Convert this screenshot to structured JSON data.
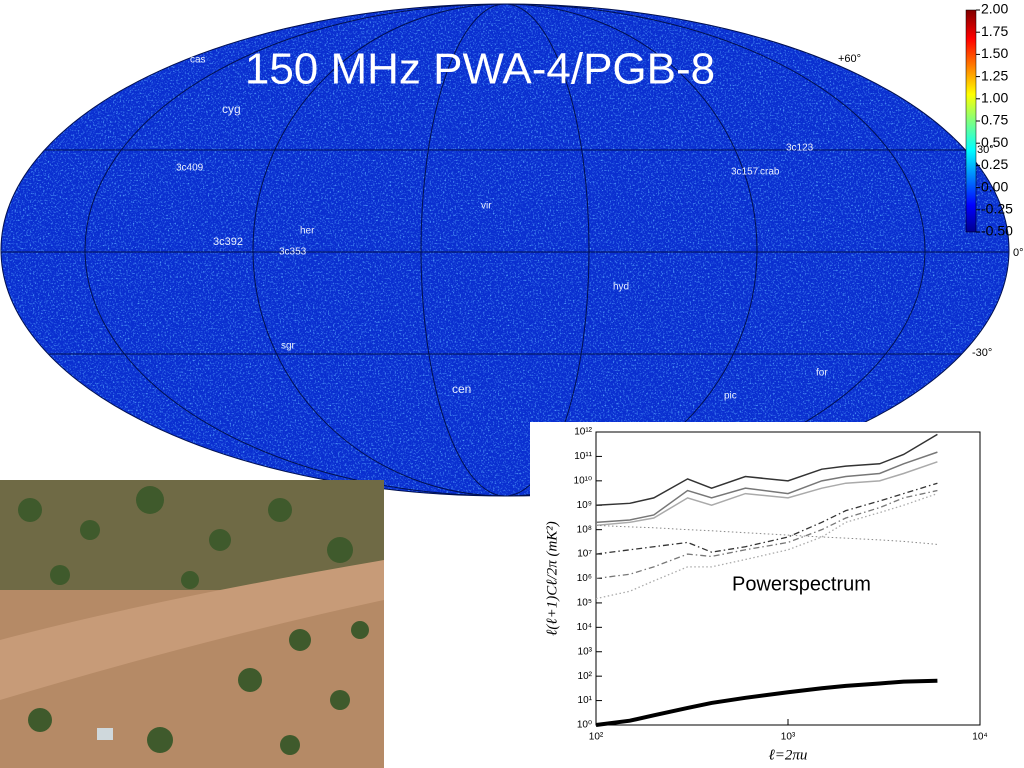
{
  "title": "150 MHz PWA-4/PGB-8",
  "sky_map": {
    "sources": [
      "cas",
      "cyg",
      "3c409",
      "her",
      "3c392",
      "3c353",
      "vir",
      "3c157",
      "crab",
      "3c123",
      "hyd",
      "sgr",
      "cen",
      "pic",
      "for"
    ],
    "grid_labels": [
      "+60°",
      "30°",
      "0°",
      "-30°"
    ]
  },
  "colorbar": {
    "lim": [
      -0.5,
      2
    ],
    "ticks": [
      {
        "value": 2,
        "label": "2.00"
      },
      {
        "value": 1.75,
        "label": "1.75"
      },
      {
        "value": 1.5,
        "label": "1.50"
      },
      {
        "value": 1.25,
        "label": "1.25"
      },
      {
        "value": 1,
        "label": "1.00"
      },
      {
        "value": 0.75,
        "label": "0.75"
      },
      {
        "value": 0.5,
        "label": "0.50"
      },
      {
        "value": 0.25,
        "label": "0.25"
      },
      {
        "value": 0,
        "label": "0.00"
      },
      {
        "value": -0.25,
        "label": "-0.25"
      },
      {
        "value": -0.5,
        "label": "-0.50"
      }
    ]
  },
  "chart_data": [
    {
      "type": "line",
      "x_label": "ℓ=2πu",
      "y_label": "ℓ(ℓ+1)Cℓ/2π  (mK²)",
      "annotation": "Powerspectrum",
      "log_x": true,
      "log_y": true,
      "xlim": [
        100,
        10000
      ],
      "ylim": [
        1,
        1000000000000
      ],
      "xticks": [
        {
          "value": 100,
          "label": "10²"
        },
        {
          "value": 1000,
          "label": "10³"
        },
        {
          "value": 10000,
          "label": "10⁴"
        }
      ],
      "yticks": [
        {
          "value": 1,
          "label": "10⁰"
        },
        {
          "value": 10,
          "label": "10¹"
        },
        {
          "value": 100,
          "label": "10²"
        },
        {
          "value": 1000,
          "label": "10³"
        },
        {
          "value": 10000,
          "label": "10⁴"
        },
        {
          "value": 100000,
          "label": "10⁵"
        },
        {
          "value": 1000000,
          "label": "10⁶"
        },
        {
          "value": 10000000,
          "label": "10⁷"
        },
        {
          "value": 100000000,
          "label": "10⁸"
        },
        {
          "value": 1000000000,
          "label": "10⁹"
        },
        {
          "value": 10000000000,
          "label": "10¹⁰"
        },
        {
          "value": 100000000000,
          "label": "10¹¹"
        },
        {
          "value": 1000000000000,
          "label": "10¹²"
        }
      ],
      "x": [
        100,
        150,
        200,
        300,
        400,
        600,
        1000,
        1500,
        2000,
        3000,
        4000,
        6000
      ],
      "series": [
        {
          "color": "#333333",
          "style": "solid",
          "width": 1.5,
          "values": [
            1000000000,
            1200000000,
            2000000000,
            12000000000,
            5000000000,
            15000000000,
            10000000000,
            30000000000,
            40000000000,
            50000000000,
            120000000000,
            800000000000
          ]
        },
        {
          "color": "#777777",
          "style": "solid",
          "width": 1.5,
          "values": [
            200000000,
            250000000,
            400000000,
            4000000000,
            2000000000,
            5000000000,
            3000000000,
            10000000000,
            15000000000,
            20000000000,
            50000000000,
            150000000000
          ]
        },
        {
          "color": "#aaaaaa",
          "style": "solid",
          "width": 1.5,
          "values": [
            150000000,
            200000000,
            300000000,
            2000000000,
            1000000000,
            3000000000,
            2000000000,
            5000000000,
            8000000000,
            10000000000,
            20000000000,
            60000000000
          ]
        },
        {
          "color": "#888888",
          "style": "dotted",
          "width": 1,
          "values": [
            150000000,
            130000000,
            120000000,
            100000000,
            90000000,
            75000000,
            60000000,
            50000000,
            45000000,
            38000000,
            33000000,
            25000000
          ]
        },
        {
          "color": "#333333",
          "style": "dashdot",
          "width": 1.3,
          "values": [
            10000000,
            15000000,
            20000000,
            30000000,
            12000000,
            20000000,
            50000000,
            200000000,
            600000000,
            1500000000,
            3000000000,
            8000000000
          ]
        },
        {
          "color": "#777777",
          "style": "dashdot",
          "width": 1.3,
          "values": [
            1000000,
            1500000,
            3000000,
            10000000,
            8000000,
            15000000,
            30000000,
            100000000,
            300000000,
            800000000,
            2000000000,
            4000000000
          ]
        },
        {
          "color": "#aaaaaa",
          "style": "dotted",
          "width": 1.3,
          "values": [
            150000,
            300000,
            800000,
            3000000,
            3000000,
            6000000,
            15000000,
            50000000,
            200000000,
            500000000,
            1000000000,
            3000000000
          ]
        },
        {
          "color": "#000000",
          "style": "solid",
          "width": 4,
          "values": [
            1,
            1.5,
            2.5,
            5,
            8,
            13,
            22,
            32,
            40,
            50,
            60,
            65
          ]
        }
      ]
    }
  ]
}
